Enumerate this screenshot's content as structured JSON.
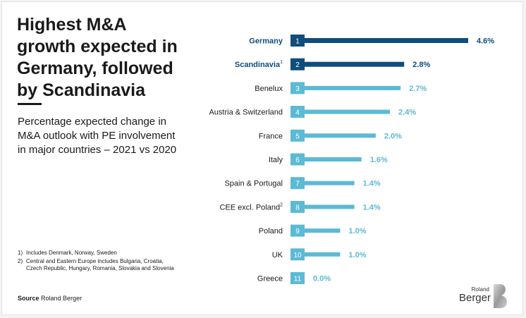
{
  "title": "Highest M&A growth expected in Germany, followed by Scandinavia",
  "subtitle": "Percentage expected change in M&A outlook with PE involvement in major countries – 2021 vs 2020",
  "footnotes": [
    {
      "mark": "1)",
      "text": "Includes Denmark, Norway, Sweden"
    },
    {
      "mark": "2)",
      "text": "Central and Eastern Europe includes Bulgaria, Croatia, Czech Republic, Hungary, Romania, Slovakia and Slovenia"
    }
  ],
  "source": {
    "label": "Source",
    "text": "Roland Berger"
  },
  "logo": {
    "small": "Roland",
    "big": "Berger"
  },
  "colors": {
    "highlight": "#0e4d7c",
    "standard": "#5bbad5",
    "label_highlight": "#0e4d7c",
    "label_standard": "#1a1a1a"
  },
  "chart_data": {
    "type": "bar",
    "orientation": "horizontal",
    "categories": [
      "Germany",
      "Scandinavia",
      "Benelux",
      "Austria & Switzerland",
      "France",
      "Italy",
      "Spain & Portugal",
      "CEE excl. Poland",
      "Poland",
      "UK",
      "Greece"
    ],
    "superscripts": [
      "",
      "1",
      "",
      "",
      "",
      "",
      "",
      "2",
      "",
      "",
      ""
    ],
    "ranks": [
      "1",
      "2",
      "3",
      "4",
      "5",
      "6",
      "7",
      "8",
      "9",
      "10",
      "11"
    ],
    "values": [
      4.6,
      2.8,
      2.7,
      2.4,
      2.0,
      1.6,
      1.4,
      1.4,
      1.0,
      1.0,
      0.0
    ],
    "value_labels": [
      "4.6%",
      "2.8%",
      "2.7%",
      "2.4%",
      "2.0%",
      "1.6%",
      "1.4%",
      "1.4%",
      "1.0%",
      "1.0%",
      "0.0%"
    ],
    "highlighted": [
      true,
      true,
      false,
      false,
      false,
      false,
      false,
      false,
      false,
      false,
      false
    ],
    "xlim": [
      0,
      4.6
    ],
    "grid": false,
    "legend": "none"
  }
}
